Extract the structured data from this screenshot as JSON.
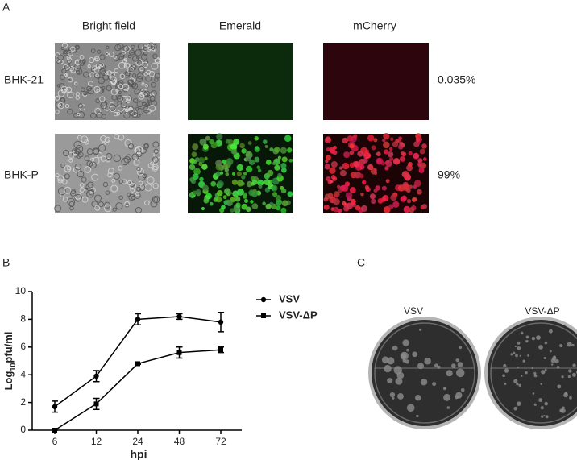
{
  "panel_a": {
    "label": "A",
    "columns": [
      "Bright field",
      "Emerald",
      "mCherry"
    ],
    "rows": [
      {
        "name": "BHK-21",
        "percent": "0.035%"
      },
      {
        "name": "BHK-P",
        "percent": "99%"
      }
    ]
  },
  "panel_b": {
    "label": "B"
  },
  "panel_c": {
    "label": "C",
    "plates": [
      "VSV",
      "VSV-ΔP"
    ]
  },
  "chart_data": {
    "type": "line",
    "xlabel": "hpi",
    "ylabel": {
      "prefix": "Log",
      "sub": "10",
      "suffix": "pfu/ml"
    },
    "categories": [
      "6",
      "12",
      "24",
      "48",
      "72"
    ],
    "ylim": [
      0,
      10
    ],
    "yticks": [
      0,
      2,
      4,
      6,
      8,
      10
    ],
    "series": [
      {
        "name": "VSV",
        "color": "#000000",
        "marker": "circle",
        "values": [
          1.7,
          3.9,
          8.0,
          8.2,
          7.8
        ],
        "errors": [
          0.4,
          0.4,
          0.4,
          0.2,
          0.7
        ]
      },
      {
        "name": "VSV-ΔP",
        "color": "#000000",
        "marker": "square",
        "values": [
          0.0,
          1.9,
          4.8,
          5.6,
          5.8
        ],
        "errors": [
          0.0,
          0.4,
          0.05,
          0.4,
          0.2
        ]
      }
    ]
  }
}
